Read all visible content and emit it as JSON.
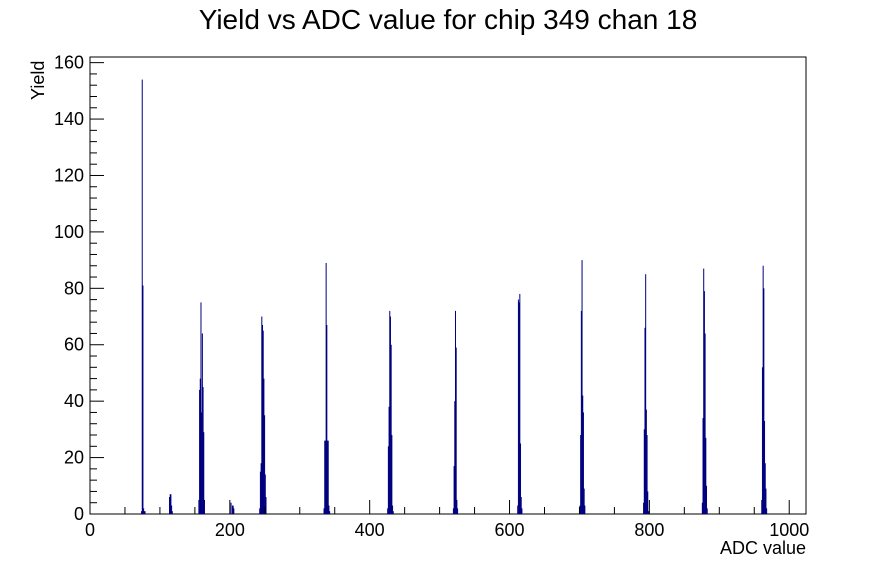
{
  "chart_data": {
    "type": "bar",
    "title": "Yield vs ADC value for chip 349 chan 18",
    "xlabel": "ADC value",
    "ylabel": "Yield",
    "xlim": [
      0,
      1024
    ],
    "ylim": [
      0,
      162
    ],
    "x_ticks": [
      0,
      200,
      400,
      600,
      800,
      1000
    ],
    "y_ticks": [
      0,
      20,
      40,
      60,
      80,
      100,
      120,
      140,
      160
    ],
    "grid": false,
    "legend": "none",
    "color": "#00007f",
    "series": [
      {
        "x": [
          73,
          74,
          75,
          76,
          77,
          78,
          113,
          114,
          115,
          116,
          117,
          155,
          156,
          157,
          158,
          159,
          160,
          161,
          162,
          163,
          201,
          203,
          204,
          205,
          242,
          243,
          244,
          245,
          246,
          247,
          248,
          249,
          250,
          251,
          334,
          335,
          336,
          337,
          338,
          339,
          340,
          341,
          342,
          425,
          426,
          427,
          428,
          429,
          430,
          431,
          432,
          433,
          519,
          520,
          521,
          522,
          523,
          524,
          525,
          611,
          612,
          613,
          614,
          615,
          616,
          617,
          700,
          701,
          702,
          703,
          704,
          705,
          706,
          707,
          791,
          792,
          793,
          794,
          795,
          796,
          797,
          798,
          875,
          876,
          877,
          878,
          879,
          880,
          881,
          882,
          960,
          961,
          962,
          963,
          964,
          965,
          966,
          967
        ],
        "values": [
          1,
          154,
          81,
          2,
          1,
          1,
          6,
          7,
          7,
          3,
          1,
          5,
          44,
          48,
          75,
          36,
          64,
          45,
          29,
          5,
          4,
          3,
          3,
          2,
          2,
          15,
          18,
          70,
          67,
          65,
          48,
          35,
          14,
          6,
          2,
          26,
          26,
          89,
          67,
          26,
          26,
          3,
          1,
          2,
          24,
          38,
          72,
          70,
          60,
          28,
          3,
          1,
          2,
          17,
          40,
          72,
          59,
          5,
          2,
          3,
          76,
          75,
          78,
          25,
          6,
          2,
          3,
          28,
          72,
          90,
          42,
          36,
          9,
          3,
          4,
          30,
          66,
          85,
          37,
          28,
          8,
          1,
          4,
          34,
          87,
          79,
          64,
          27,
          10,
          2,
          5,
          52,
          88,
          80,
          33,
          18,
          9,
          2
        ]
      }
    ]
  }
}
